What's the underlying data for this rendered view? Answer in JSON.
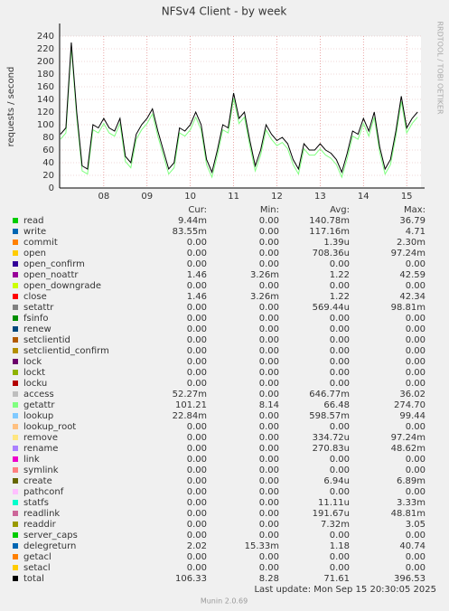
{
  "chart_data": {
    "type": "line",
    "title": "NFSv4 Client - by week",
    "y_label": "requests / second",
    "x": [
      7,
      7.125,
      7.25,
      7.375,
      7.5,
      7.625,
      7.75,
      7.875,
      8,
      8.125,
      8.25,
      8.375,
      8.5,
      8.625,
      8.75,
      8.875,
      9,
      9.125,
      9.25,
      9.375,
      9.5,
      9.625,
      9.75,
      9.875,
      10,
      10.125,
      10.25,
      10.375,
      10.5,
      10.625,
      10.75,
      10.875,
      11,
      11.125,
      11.25,
      11.375,
      11.5,
      11.625,
      11.75,
      11.875,
      12,
      12.125,
      12.25,
      12.375,
      12.5,
      12.625,
      12.75,
      12.875,
      13,
      13.125,
      13.25,
      13.375,
      13.5,
      13.625,
      13.75,
      13.875,
      14,
      14.125,
      14.25,
      14.375,
      14.5,
      14.625,
      14.75,
      14.875,
      15,
      15.125,
      15.25
    ],
    "series": [
      {
        "name": "getattr",
        "color": "#80ff80",
        "values": [
          77,
          87,
          222,
          112,
          27,
          22,
          92,
          87,
          102,
          87,
          82,
          102,
          42,
          32,
          77,
          92,
          102,
          117,
          82,
          52,
          22,
          32,
          87,
          82,
          92,
          112,
          92,
          37,
          17,
          52,
          92,
          87,
          142,
          102,
          112,
          67,
          27,
          52,
          92,
          77,
          67,
          72,
          62,
          37,
          22,
          62,
          52,
          52,
          62,
          52,
          47,
          37,
          17,
          47,
          82,
          77,
          102,
          82,
          112,
          57,
          22,
          37,
          82,
          137,
          87,
          102,
          112
        ]
      },
      {
        "name": "total",
        "color": "#000000",
        "values": [
          85,
          95,
          230,
          120,
          35,
          30,
          100,
          95,
          110,
          95,
          90,
          110,
          50,
          40,
          85,
          100,
          110,
          125,
          90,
          60,
          30,
          40,
          95,
          90,
          100,
          120,
          100,
          45,
          25,
          60,
          100,
          95,
          150,
          110,
          120,
          75,
          35,
          60,
          100,
          85,
          75,
          80,
          70,
          45,
          30,
          70,
          60,
          60,
          70,
          60,
          55,
          45,
          25,
          55,
          90,
          85,
          110,
          90,
          120,
          65,
          30,
          45,
          90,
          145,
          95,
          110,
          120
        ]
      }
    ],
    "xlim": [
      6.98,
      15.33
    ],
    "xticks": [
      {
        "value": 8,
        "label": "08"
      },
      {
        "value": 9,
        "label": "09"
      },
      {
        "value": 10,
        "label": "10"
      },
      {
        "value": 11,
        "label": "11"
      },
      {
        "value": 12,
        "label": "12"
      },
      {
        "value": 13,
        "label": "13"
      },
      {
        "value": 14,
        "label": "14"
      },
      {
        "value": 15,
        "label": "15"
      }
    ],
    "ylim": [
      0,
      240
    ],
    "yticks": [
      0,
      20,
      40,
      60,
      80,
      100,
      120,
      140,
      160,
      180,
      200,
      220,
      240
    ],
    "grid": true
  },
  "legend": {
    "headers": [
      "Cur:",
      "Min:",
      "Avg:",
      "Max:"
    ],
    "rows": [
      {
        "name": "read",
        "color": "#00cc00",
        "cur": "9.44m",
        "min": "0.00",
        "avg": "140.78m",
        "max": "36.79"
      },
      {
        "name": "write",
        "color": "#0066b3",
        "cur": "83.55m",
        "min": "0.00",
        "avg": "117.16m",
        "max": "4.71"
      },
      {
        "name": "commit",
        "color": "#ff8000",
        "cur": "0.00",
        "min": "0.00",
        "avg": "1.39u",
        "max": "2.30m"
      },
      {
        "name": "open",
        "color": "#ffcc00",
        "cur": "0.00",
        "min": "0.00",
        "avg": "708.36u",
        "max": "97.24m"
      },
      {
        "name": "open_confirm",
        "color": "#330099",
        "cur": "0.00",
        "min": "0.00",
        "avg": "0.00",
        "max": "0.00"
      },
      {
        "name": "open_noattr",
        "color": "#990099",
        "cur": "1.46",
        "min": "3.26m",
        "avg": "1.22",
        "max": "42.59"
      },
      {
        "name": "open_downgrade",
        "color": "#ccff00",
        "cur": "0.00",
        "min": "0.00",
        "avg": "0.00",
        "max": "0.00"
      },
      {
        "name": "close",
        "color": "#ff0000",
        "cur": "1.46",
        "min": "3.26m",
        "avg": "1.22",
        "max": "42.34"
      },
      {
        "name": "setattr",
        "color": "#808080",
        "cur": "0.00",
        "min": "0.00",
        "avg": "569.44u",
        "max": "98.81m"
      },
      {
        "name": "fsinfo",
        "color": "#008f00",
        "cur": "0.00",
        "min": "0.00",
        "avg": "0.00",
        "max": "0.00"
      },
      {
        "name": "renew",
        "color": "#00487d",
        "cur": "0.00",
        "min": "0.00",
        "avg": "0.00",
        "max": "0.00"
      },
      {
        "name": "setclientid",
        "color": "#b35a00",
        "cur": "0.00",
        "min": "0.00",
        "avg": "0.00",
        "max": "0.00"
      },
      {
        "name": "setclientid_confirm",
        "color": "#b38f00",
        "cur": "0.00",
        "min": "0.00",
        "avg": "0.00",
        "max": "0.00"
      },
      {
        "name": "lock",
        "color": "#6b006b",
        "cur": "0.00",
        "min": "0.00",
        "avg": "0.00",
        "max": "0.00"
      },
      {
        "name": "lockt",
        "color": "#8fb300",
        "cur": "0.00",
        "min": "0.00",
        "avg": "0.00",
        "max": "0.00"
      },
      {
        "name": "locku",
        "color": "#b30000",
        "cur": "0.00",
        "min": "0.00",
        "avg": "0.00",
        "max": "0.00"
      },
      {
        "name": "access",
        "color": "#bebebe",
        "cur": "52.27m",
        "min": "0.00",
        "avg": "646.77m",
        "max": "36.02"
      },
      {
        "name": "getattr",
        "color": "#80ff80",
        "cur": "101.21",
        "min": "8.14",
        "avg": "66.48",
        "max": "274.70"
      },
      {
        "name": "lookup",
        "color": "#80c9ff",
        "cur": "22.84m",
        "min": "0.00",
        "avg": "598.57m",
        "max": "99.44"
      },
      {
        "name": "lookup_root",
        "color": "#ffc080",
        "cur": "0.00",
        "min": "0.00",
        "avg": "0.00",
        "max": "0.00"
      },
      {
        "name": "remove",
        "color": "#ffe680",
        "cur": "0.00",
        "min": "0.00",
        "avg": "334.72u",
        "max": "97.24m"
      },
      {
        "name": "rename",
        "color": "#aa80ff",
        "cur": "0.00",
        "min": "0.00",
        "avg": "270.83u",
        "max": "48.62m"
      },
      {
        "name": "link",
        "color": "#ee00cc",
        "cur": "0.00",
        "min": "0.00",
        "avg": "0.00",
        "max": "0.00"
      },
      {
        "name": "symlink",
        "color": "#ff8080",
        "cur": "0.00",
        "min": "0.00",
        "avg": "0.00",
        "max": "0.00"
      },
      {
        "name": "create",
        "color": "#666600",
        "cur": "0.00",
        "min": "0.00",
        "avg": "6.94u",
        "max": "6.89m"
      },
      {
        "name": "pathconf",
        "color": "#ffbfff",
        "cur": "0.00",
        "min": "0.00",
        "avg": "0.00",
        "max": "0.00"
      },
      {
        "name": "statfs",
        "color": "#00ffcc",
        "cur": "0.00",
        "min": "0.00",
        "avg": "11.11u",
        "max": "3.33m"
      },
      {
        "name": "readlink",
        "color": "#cc6699",
        "cur": "0.00",
        "min": "0.00",
        "avg": "191.67u",
        "max": "48.81m"
      },
      {
        "name": "readdir",
        "color": "#999900",
        "cur": "0.00",
        "min": "0.00",
        "avg": "7.32m",
        "max": "3.05"
      },
      {
        "name": "server_caps",
        "color": "#00cc00",
        "cur": "0.00",
        "min": "0.00",
        "avg": "0.00",
        "max": "0.00"
      },
      {
        "name": "delegreturn",
        "color": "#0066b3",
        "cur": "2.02",
        "min": "15.33m",
        "avg": "1.18",
        "max": "40.74"
      },
      {
        "name": "getacl",
        "color": "#ff8000",
        "cur": "0.00",
        "min": "0.00",
        "avg": "0.00",
        "max": "0.00"
      },
      {
        "name": "setacl",
        "color": "#ffcc00",
        "cur": "0.00",
        "min": "0.00",
        "avg": "0.00",
        "max": "0.00"
      },
      {
        "name": "total",
        "color": "#000000",
        "cur": "106.33",
        "min": "8.28",
        "avg": "71.61",
        "max": "396.53"
      }
    ]
  },
  "last_update": "Last update: Mon Sep 15 20:30:05 2025",
  "side_text": "RRDTOOL / TOBI OETIKER",
  "footer": "Munin 2.0.69"
}
